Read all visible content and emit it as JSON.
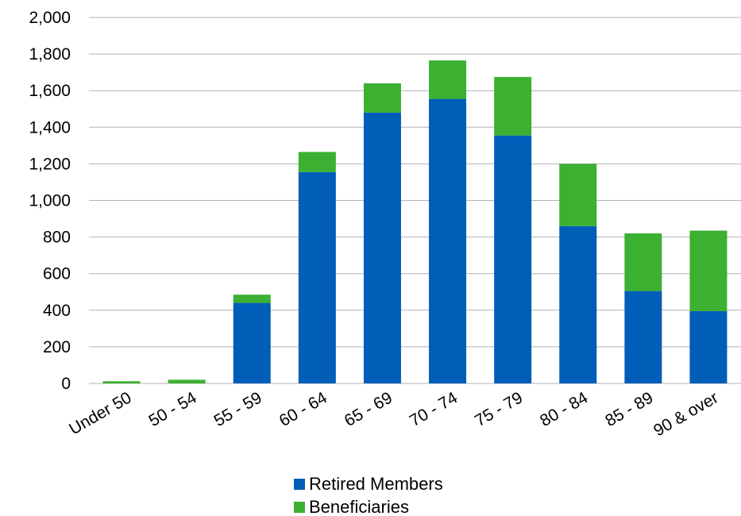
{
  "chart_data": {
    "type": "bar",
    "stacked": true,
    "title": "",
    "xlabel": "",
    "ylabel": "",
    "ylim": [
      0,
      2000
    ],
    "yticks": [
      "0",
      "200",
      "400",
      "600",
      "800",
      "1,000",
      "1,200",
      "1,400",
      "1,600",
      "1,800",
      "2,000"
    ],
    "grid": true,
    "legend_position": "bottom",
    "categories": [
      "Under 50",
      "50 - 54",
      "55 - 59",
      "60 - 64",
      "65 - 69",
      "70 - 74",
      "75 - 79",
      "80 - 84",
      "85 - 89",
      "90 & over"
    ],
    "series": [
      {
        "name": "Retired Members",
        "color": "#005eb8",
        "values": [
          0,
          0,
          440,
          1155,
          1480,
          1555,
          1355,
          860,
          505,
          395
        ]
      },
      {
        "name": "Beneficiaries",
        "color": "#3cb031",
        "values": [
          12,
          20,
          45,
          110,
          160,
          210,
          320,
          340,
          315,
          440
        ]
      }
    ]
  }
}
